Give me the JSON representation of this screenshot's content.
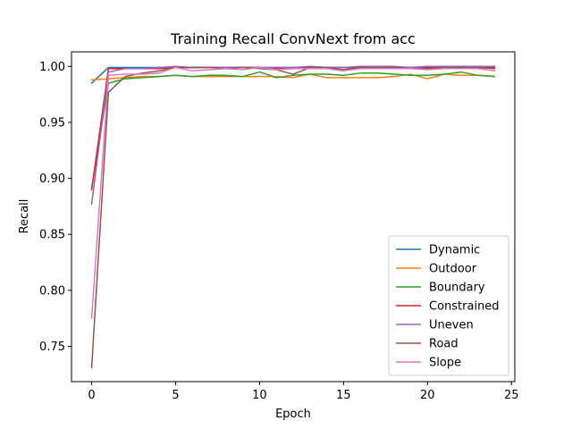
{
  "chart_data": {
    "type": "line",
    "title": "Training Recall ConvNext from acc",
    "xlabel": "Epoch",
    "ylabel": "Recall",
    "xlim": [
      -1.2,
      25.2
    ],
    "ylim": [
      0.7185,
      1.013
    ],
    "xticks": [
      0,
      5,
      10,
      15,
      20,
      25
    ],
    "yticks": [
      0.75,
      0.8,
      0.85,
      0.9,
      0.95,
      1.0
    ],
    "ytick_labels": [
      "0.75",
      "0.80",
      "0.85",
      "0.90",
      "0.95",
      "1.00"
    ],
    "grid": false,
    "legend_position": "lower-right",
    "x": [
      0,
      1,
      2,
      3,
      4,
      5,
      6,
      7,
      8,
      9,
      10,
      11,
      12,
      13,
      14,
      15,
      16,
      17,
      18,
      19,
      20,
      21,
      22,
      23,
      24
    ],
    "series": [
      {
        "name": "Dynamic",
        "color": "#1f77b4",
        "values": [
          0.985,
          0.999,
          0.999,
          0.999,
          0.999,
          0.999,
          0.999,
          0.999,
          0.999,
          0.999,
          0.999,
          0.999,
          0.999,
          0.999,
          0.999,
          0.999,
          0.999,
          0.999,
          0.999,
          0.999,
          0.999,
          0.999,
          0.999,
          0.999,
          0.999
        ]
      },
      {
        "name": "Outdoor",
        "color": "#ff7f0e",
        "values": [
          0.988,
          0.989,
          0.99,
          0.991,
          0.991,
          0.992,
          0.991,
          0.991,
          0.991,
          0.991,
          0.991,
          0.991,
          0.99,
          0.993,
          0.99,
          0.99,
          0.99,
          0.99,
          0.991,
          0.993,
          0.989,
          0.993,
          0.992,
          0.992,
          0.991
        ]
      },
      {
        "name": "Boundary",
        "color": "#2ca02c",
        "values": [
          0.891,
          0.985,
          0.989,
          0.99,
          0.991,
          0.992,
          0.991,
          0.992,
          0.992,
          0.991,
          0.995,
          0.99,
          0.992,
          0.993,
          0.993,
          0.992,
          0.994,
          0.994,
          0.993,
          0.992,
          0.992,
          0.993,
          0.995,
          0.992,
          0.991
        ]
      },
      {
        "name": "Constrained",
        "color": "#d62728",
        "values": [
          0.89,
          0.998,
          0.998,
          0.998,
          0.998,
          0.999,
          0.999,
          0.999,
          0.999,
          0.999,
          0.999,
          0.998,
          0.999,
          0.999,
          0.999,
          0.999,
          0.999,
          0.999,
          0.999,
          0.999,
          0.999,
          0.999,
          0.999,
          0.999,
          0.999
        ]
      },
      {
        "name": "Uneven",
        "color": "#9467bd",
        "values": [
          0.877,
          0.995,
          0.998,
          0.998,
          0.999,
          1.0,
          0.999,
          0.999,
          0.999,
          0.999,
          0.999,
          0.999,
          0.999,
          1.0,
          0.999,
          0.999,
          1.0,
          1.0,
          1.0,
          0.999,
          1.0,
          1.0,
          1.0,
          1.0,
          1.0
        ]
      },
      {
        "name": "Road",
        "color": "#8c564b",
        "values": [
          0.731,
          0.977,
          0.991,
          0.994,
          0.996,
          0.999,
          0.999,
          0.999,
          0.998,
          0.999,
          0.998,
          0.997,
          0.993,
          0.999,
          0.999,
          0.997,
          0.999,
          0.999,
          0.999,
          0.998,
          0.998,
          0.999,
          0.999,
          0.999,
          0.998
        ]
      },
      {
        "name": "Slope",
        "color": "#e377c2",
        "values": [
          0.775,
          0.992,
          0.993,
          0.993,
          0.994,
          0.999,
          0.996,
          0.997,
          0.998,
          0.997,
          0.999,
          0.997,
          0.998,
          0.998,
          0.998,
          0.996,
          0.998,
          0.998,
          0.998,
          0.998,
          0.997,
          0.998,
          0.998,
          0.998,
          0.996
        ]
      }
    ]
  }
}
